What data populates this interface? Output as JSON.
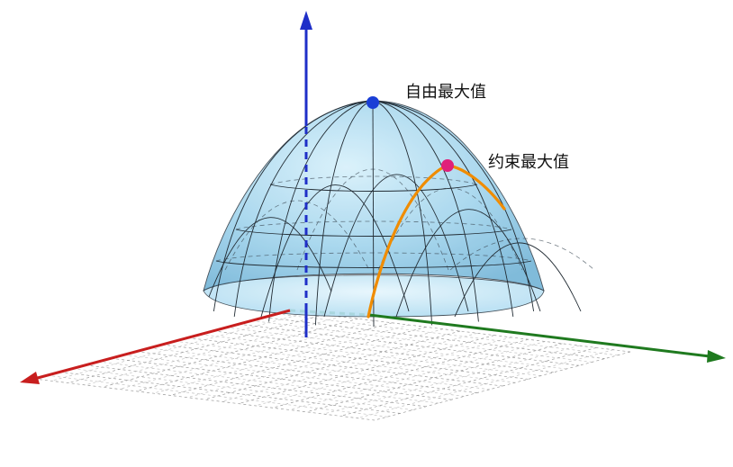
{
  "labels": {
    "free_maximum": "自由最大值",
    "constrained_maximum": "约束最大值"
  },
  "colors": {
    "surface_fill": "#8cc9e8",
    "surface_edge": "#2f3b45",
    "z_axis": "#1f2fc8",
    "x_axis": "#c81e1e",
    "y_axis": "#1f7a1f",
    "constraint_curve": "#f08c00",
    "free_max_point": "#1a3fd6",
    "constrained_max_point": "#e0207a",
    "grid": "#9a9a9a"
  }
}
